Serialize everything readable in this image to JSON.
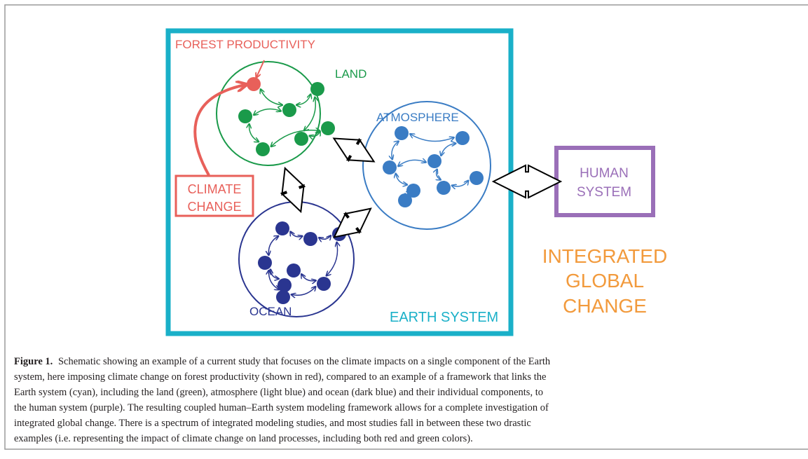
{
  "figure": {
    "labels": {
      "forest_productivity": "FOREST PRODUCTIVITY",
      "land": "LAND",
      "atmosphere": "ATMOSPHERE",
      "ocean": "OCEAN",
      "earth_system": "EARTH SYSTEM",
      "climate_change": [
        "CLIMATE",
        "CHANGE"
      ],
      "human_system": [
        "HUMAN",
        "SYSTEM"
      ],
      "integrated_global_change": [
        "INTEGRATED",
        "GLOBAL",
        "CHANGE"
      ]
    }
  },
  "caption": {
    "label": "Figure 1.",
    "lines": [
      "Schematic showing an example of a current study that focuses on the climate impacts on a single component of the Earth",
      "system, here imposing climate change on forest productivity (shown in red), compared to an example of a framework that links the",
      "Earth system (cyan), including the land (green), atmosphere (light blue) and ocean (dark blue) and their individual components, to",
      "the human system (purple). The resulting coupled human–Earth system modeling framework allows for a complete investigation of",
      "integrated global change. There is a spectrum of integrated modeling studies, and most studies fall in between these two drastic",
      "examples (i.e. representing the impact of climate change on land processes, including both red and green colors)."
    ]
  }
}
